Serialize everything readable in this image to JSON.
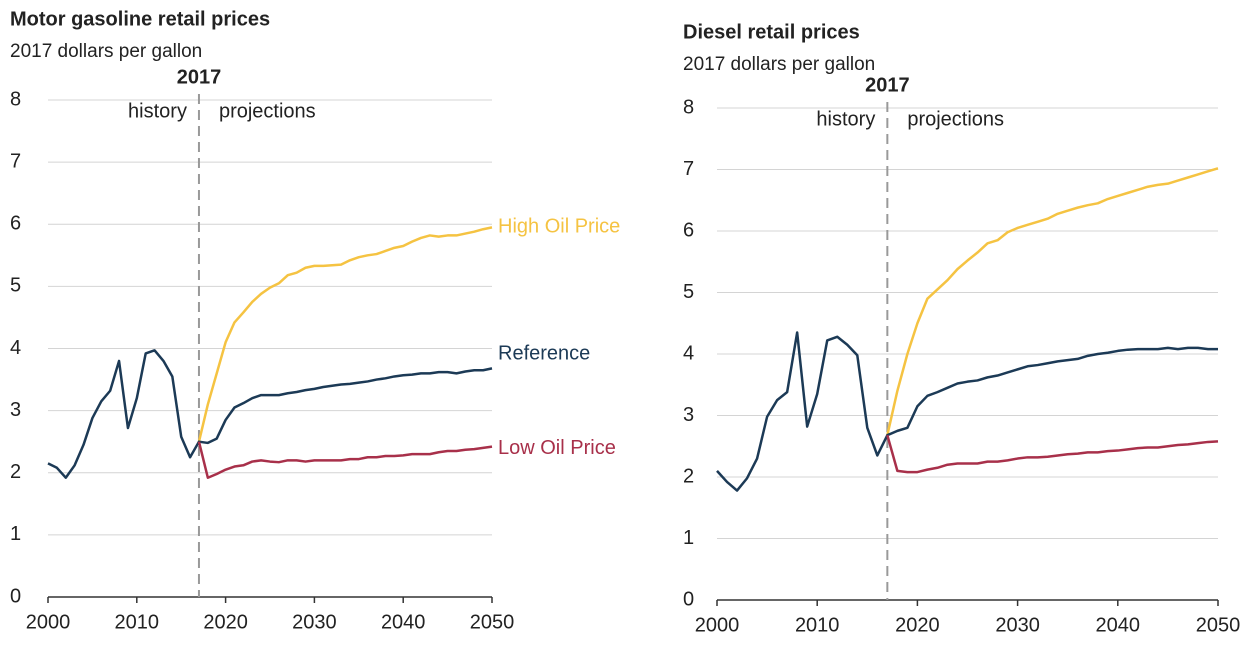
{
  "chart_data": [
    {
      "type": "line",
      "title": "Motor gasoline retail prices",
      "subtitle": "2017 dollars per gallon",
      "divider": 2017,
      "history_label": "history",
      "projection_label": "projections",
      "x": [
        2000,
        2001,
        2002,
        2003,
        2004,
        2005,
        2006,
        2007,
        2008,
        2009,
        2010,
        2011,
        2012,
        2013,
        2014,
        2015,
        2016,
        2017,
        2018,
        2019,
        2020,
        2021,
        2022,
        2023,
        2024,
        2025,
        2026,
        2027,
        2028,
        2029,
        2030,
        2031,
        2032,
        2033,
        2034,
        2035,
        2036,
        2037,
        2038,
        2039,
        2040,
        2041,
        2042,
        2043,
        2044,
        2045,
        2046,
        2047,
        2048,
        2049,
        2050
      ],
      "series": [
        {
          "name": "High Oil Price",
          "color": "#f5c342",
          "values": [
            null,
            null,
            null,
            null,
            null,
            null,
            null,
            null,
            null,
            null,
            null,
            null,
            null,
            null,
            null,
            null,
            null,
            2.5,
            3.1,
            3.6,
            4.1,
            4.42,
            4.58,
            4.75,
            4.88,
            4.98,
            5.05,
            5.18,
            5.22,
            5.3,
            5.33,
            5.33,
            5.34,
            5.35,
            5.42,
            5.47,
            5.5,
            5.52,
            5.57,
            5.62,
            5.65,
            5.72,
            5.78,
            5.82,
            5.8,
            5.82,
            5.82,
            5.85,
            5.88,
            5.92,
            5.95
          ]
        },
        {
          "name": "Reference",
          "color": "#1c3a56",
          "values": [
            2.15,
            2.08,
            1.92,
            2.12,
            2.45,
            2.88,
            3.15,
            3.32,
            3.8,
            2.72,
            3.2,
            3.92,
            3.97,
            3.8,
            3.55,
            2.58,
            2.25,
            2.5,
            2.48,
            2.55,
            2.85,
            3.05,
            3.12,
            3.2,
            3.25,
            3.25,
            3.25,
            3.28,
            3.3,
            3.33,
            3.35,
            3.38,
            3.4,
            3.42,
            3.43,
            3.45,
            3.47,
            3.5,
            3.52,
            3.55,
            3.57,
            3.58,
            3.6,
            3.6,
            3.62,
            3.62,
            3.6,
            3.63,
            3.65,
            3.65,
            3.68
          ]
        },
        {
          "name": "Low Oil Price",
          "color": "#a8304a",
          "values": [
            null,
            null,
            null,
            null,
            null,
            null,
            null,
            null,
            null,
            null,
            null,
            null,
            null,
            null,
            null,
            null,
            null,
            2.5,
            1.92,
            1.98,
            2.05,
            2.1,
            2.12,
            2.18,
            2.2,
            2.18,
            2.17,
            2.2,
            2.2,
            2.18,
            2.2,
            2.2,
            2.2,
            2.2,
            2.22,
            2.22,
            2.25,
            2.25,
            2.27,
            2.27,
            2.28,
            2.3,
            2.3,
            2.3,
            2.33,
            2.35,
            2.35,
            2.37,
            2.38,
            2.4,
            2.42
          ]
        }
      ],
      "xlim": [
        2000,
        2050
      ],
      "xticks": [
        2000,
        2010,
        2020,
        2030,
        2040,
        2050
      ],
      "ylim": [
        0,
        8
      ],
      "yticks": [
        0,
        1,
        2,
        3,
        4,
        5,
        6,
        7,
        8
      ],
      "grid": true
    },
    {
      "type": "line",
      "title": "Diesel retail prices",
      "subtitle": "2017 dollars per gallon",
      "divider": 2017,
      "history_label": "history",
      "projection_label": "projections",
      "x": [
        2000,
        2001,
        2002,
        2003,
        2004,
        2005,
        2006,
        2007,
        2008,
        2009,
        2010,
        2011,
        2012,
        2013,
        2014,
        2015,
        2016,
        2017,
        2018,
        2019,
        2020,
        2021,
        2022,
        2023,
        2024,
        2025,
        2026,
        2027,
        2028,
        2029,
        2030,
        2031,
        2032,
        2033,
        2034,
        2035,
        2036,
        2037,
        2038,
        2039,
        2040,
        2041,
        2042,
        2043,
        2044,
        2045,
        2046,
        2047,
        2048,
        2049,
        2050
      ],
      "series": [
        {
          "color": "#f5c342",
          "values": [
            null,
            null,
            null,
            null,
            null,
            null,
            null,
            null,
            null,
            null,
            null,
            null,
            null,
            null,
            null,
            null,
            null,
            2.68,
            3.4,
            4.0,
            4.5,
            4.9,
            5.05,
            5.2,
            5.38,
            5.52,
            5.65,
            5.8,
            5.85,
            5.98,
            6.05,
            6.1,
            6.15,
            6.2,
            6.28,
            6.33,
            6.38,
            6.42,
            6.45,
            6.52,
            6.57,
            6.62,
            6.67,
            6.72,
            6.75,
            6.77,
            6.82,
            6.87,
            6.92,
            6.97,
            7.02
          ]
        },
        {
          "color": "#1c3a56",
          "values": [
            2.1,
            1.92,
            1.78,
            1.98,
            2.3,
            2.98,
            3.25,
            3.38,
            4.35,
            2.82,
            3.35,
            4.22,
            4.28,
            4.15,
            3.98,
            2.8,
            2.35,
            2.68,
            2.75,
            2.8,
            3.15,
            3.32,
            3.38,
            3.45,
            3.52,
            3.55,
            3.57,
            3.62,
            3.65,
            3.7,
            3.75,
            3.8,
            3.82,
            3.85,
            3.88,
            3.9,
            3.92,
            3.97,
            4.0,
            4.02,
            4.05,
            4.07,
            4.08,
            4.08,
            4.08,
            4.1,
            4.08,
            4.1,
            4.1,
            4.08,
            4.08
          ]
        },
        {
          "color": "#a8304a",
          "values": [
            null,
            null,
            null,
            null,
            null,
            null,
            null,
            null,
            null,
            null,
            null,
            null,
            null,
            null,
            null,
            null,
            null,
            2.68,
            2.1,
            2.08,
            2.08,
            2.12,
            2.15,
            2.2,
            2.22,
            2.22,
            2.22,
            2.25,
            2.25,
            2.27,
            2.3,
            2.32,
            2.32,
            2.33,
            2.35,
            2.37,
            2.38,
            2.4,
            2.4,
            2.42,
            2.43,
            2.45,
            2.47,
            2.48,
            2.48,
            2.5,
            2.52,
            2.53,
            2.55,
            2.57,
            2.58
          ]
        }
      ],
      "xlim": [
        2000,
        2050
      ],
      "xticks": [
        2000,
        2010,
        2020,
        2030,
        2040,
        2050
      ],
      "ylim": [
        0,
        8
      ],
      "yticks": [
        0,
        1,
        2,
        3,
        4,
        5,
        6,
        7,
        8
      ],
      "grid": true
    }
  ]
}
